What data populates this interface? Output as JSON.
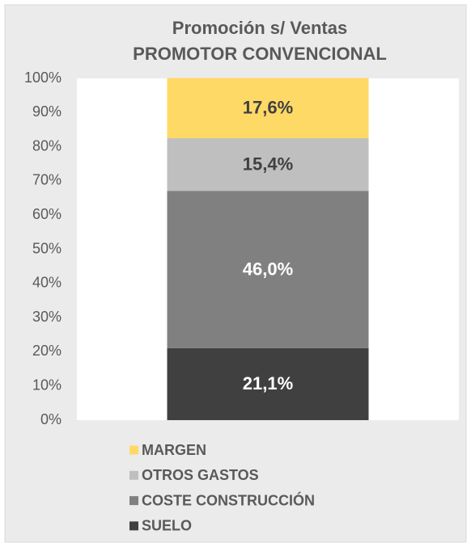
{
  "chart_data": {
    "type": "stacked_bar",
    "title": "Promoción s/ Ventas",
    "subtitle": "PROMOTOR CONVENCIONAL",
    "categories": [
      null
    ],
    "series": [
      {
        "name": "SUELO",
        "color": "#404040",
        "values": [
          21.1
        ],
        "value_labels": [
          "21,1%"
        ]
      },
      {
        "name": "COSTE CONSTRUCCIÓN",
        "color": "#808080",
        "values": [
          46.0
        ],
        "value_labels": [
          "46,0%"
        ]
      },
      {
        "name": "OTROS GASTOS",
        "color": "#bfbfbf",
        "values": [
          15.4
        ],
        "value_labels": [
          "15,4%"
        ]
      },
      {
        "name": "MARGEN",
        "color": "#ffd966",
        "values": [
          17.6
        ],
        "value_labels": [
          "17,6%"
        ]
      }
    ],
    "ylim": [
      0,
      100
    ],
    "yticks": [
      {
        "value": 0,
        "label": "0%"
      },
      {
        "value": 10,
        "label": "10%"
      },
      {
        "value": 20,
        "label": "20%"
      },
      {
        "value": 30,
        "label": "30%"
      },
      {
        "value": 40,
        "label": "40%"
      },
      {
        "value": 50,
        "label": "50%"
      },
      {
        "value": 60,
        "label": "60%"
      },
      {
        "value": 70,
        "label": "70%"
      },
      {
        "value": 80,
        "label": "80%"
      },
      {
        "value": 90,
        "label": "90%"
      },
      {
        "value": 100,
        "label": "100%"
      }
    ],
    "grid": false,
    "legend": "bottom"
  }
}
